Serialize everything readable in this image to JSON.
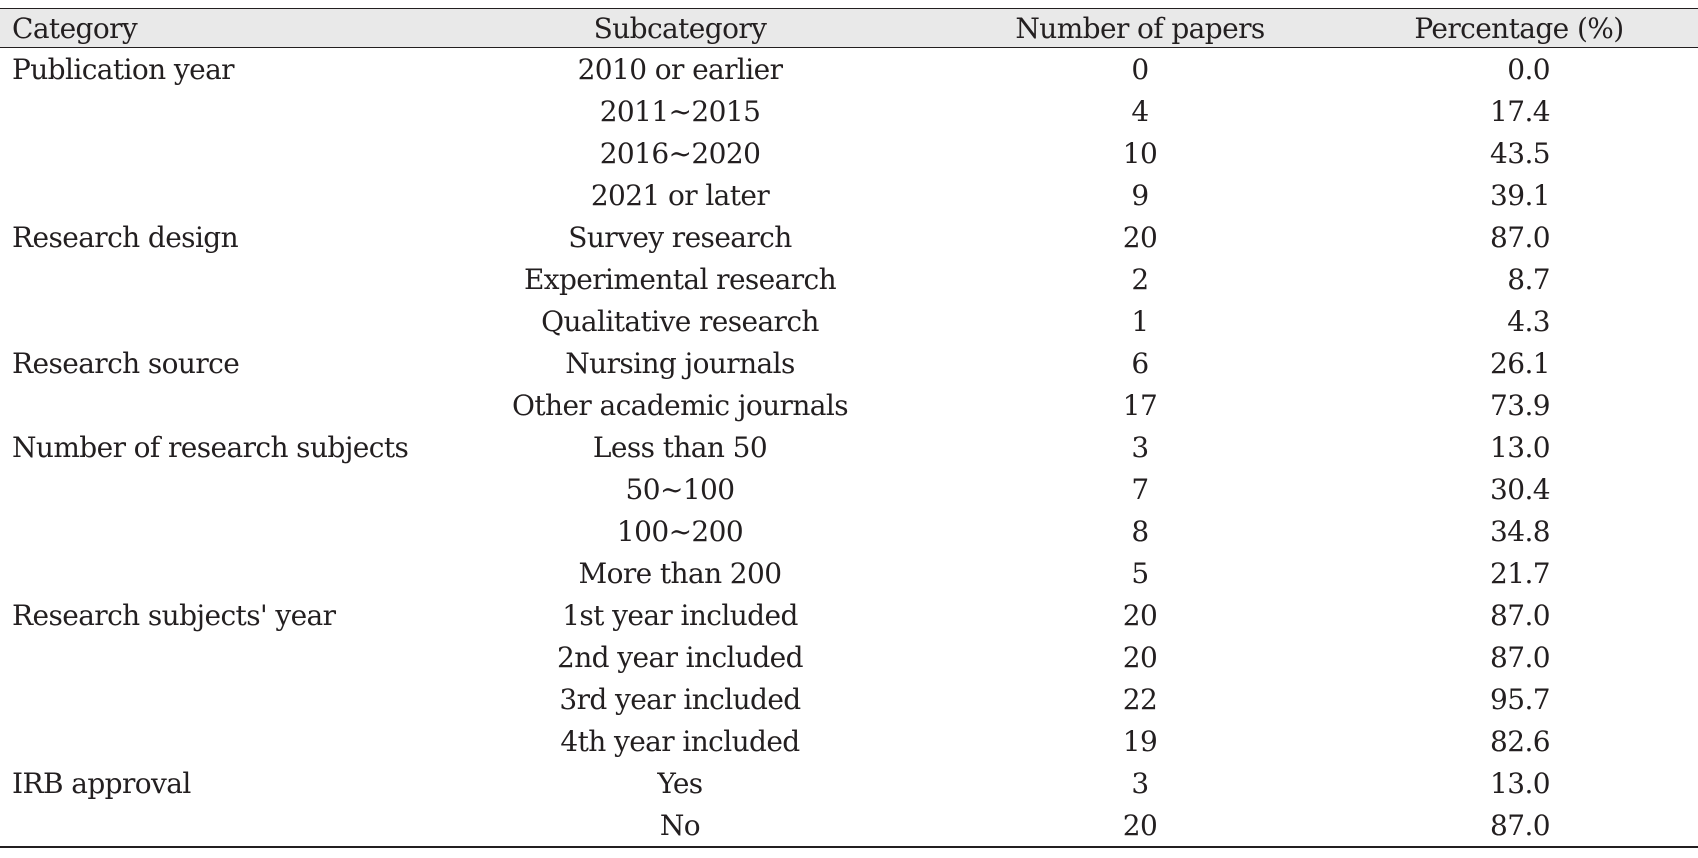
{
  "table": {
    "headers": [
      "Category",
      "Subcategory",
      "Number of papers",
      "Percentage (%)"
    ],
    "rows": [
      {
        "category": "Publication year",
        "subcategory": "2010 or earlier",
        "papers": "0",
        "percentage": "0.0"
      },
      {
        "category": "",
        "subcategory": "2011~2015",
        "papers": "4",
        "percentage": "17.4"
      },
      {
        "category": "",
        "subcategory": "2016~2020",
        "papers": "10",
        "percentage": "43.5"
      },
      {
        "category": "",
        "subcategory": "2021 or later",
        "papers": "9",
        "percentage": "39.1"
      },
      {
        "category": "Research design",
        "subcategory": "Survey research",
        "papers": "20",
        "percentage": "87.0"
      },
      {
        "category": "",
        "subcategory": "Experimental research",
        "papers": "2",
        "percentage": "8.7"
      },
      {
        "category": "",
        "subcategory": "Qualitative research",
        "papers": "1",
        "percentage": "4.3"
      },
      {
        "category": "Research source",
        "subcategory": "Nursing journals",
        "papers": "6",
        "percentage": "26.1"
      },
      {
        "category": "",
        "subcategory": "Other academic journals",
        "papers": "17",
        "percentage": "73.9"
      },
      {
        "category": "Number of research subjects",
        "subcategory": "Less than 50",
        "papers": "3",
        "percentage": "13.0"
      },
      {
        "category": "",
        "subcategory": "50~100",
        "papers": "7",
        "percentage": "30.4"
      },
      {
        "category": "",
        "subcategory": "100~200",
        "papers": "8",
        "percentage": "34.8"
      },
      {
        "category": "",
        "subcategory": "More than 200",
        "papers": "5",
        "percentage": "21.7"
      },
      {
        "category": "Research subjects' year",
        "subcategory": "1st year included",
        "papers": "20",
        "percentage": "87.0"
      },
      {
        "category": "",
        "subcategory": "2nd year included",
        "papers": "20",
        "percentage": "87.0"
      },
      {
        "category": "",
        "subcategory": "3rd year included",
        "papers": "22",
        "percentage": "95.7"
      },
      {
        "category": "",
        "subcategory": "4th year included",
        "papers": "19",
        "percentage": "82.6"
      },
      {
        "category": "IRB approval",
        "subcategory": "Yes",
        "papers": "3",
        "percentage": "13.0"
      },
      {
        "category": "",
        "subcategory": "No",
        "papers": "20",
        "percentage": "87.0"
      }
    ]
  }
}
